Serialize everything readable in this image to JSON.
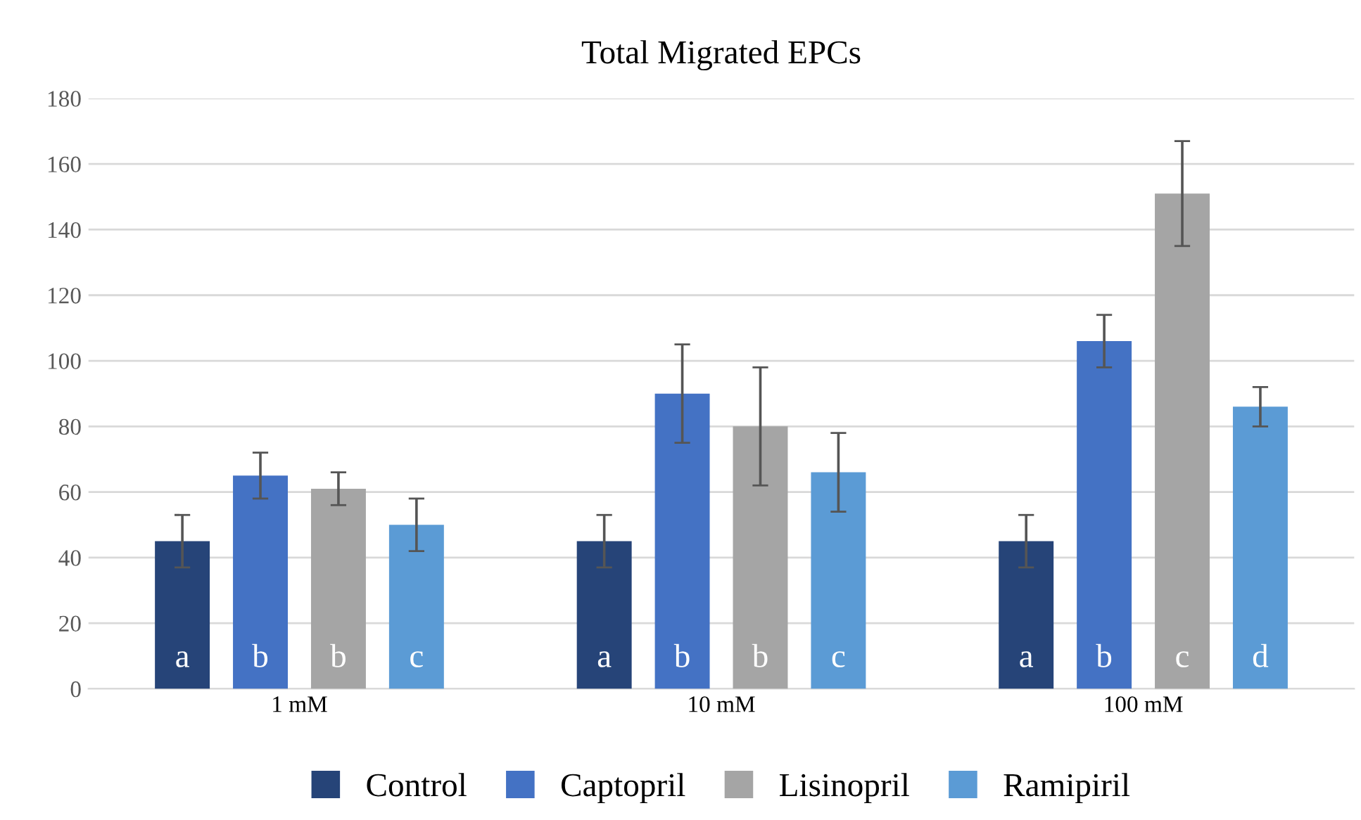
{
  "chart_data": {
    "type": "bar",
    "title": "Total Migrated EPCs",
    "categories": [
      "1 mM",
      "10 mM",
      "100 mM"
    ],
    "series": [
      {
        "name": "Control",
        "color": "#264478",
        "values": [
          45,
          45,
          45
        ],
        "errors": [
          8,
          8,
          8
        ],
        "value_labels": [
          "a",
          "a",
          "a"
        ]
      },
      {
        "name": "Captopril",
        "color": "#4472c4",
        "values": [
          65,
          90,
          106
        ],
        "errors": [
          7,
          15,
          8
        ],
        "value_labels": [
          "b",
          "b",
          "b"
        ]
      },
      {
        "name": "Lisinopril",
        "color": "#a5a5a5",
        "values": [
          61,
          80,
          151
        ],
        "errors": [
          5,
          18,
          16
        ],
        "value_labels": [
          "b",
          "b",
          "c"
        ]
      },
      {
        "name": "Ramipiril",
        "color": "#5b9bd5",
        "values": [
          50,
          66,
          86
        ],
        "errors": [
          8,
          12,
          6
        ],
        "value_labels": [
          "c",
          "c",
          "d"
        ]
      }
    ],
    "ylim": [
      0,
      180
    ],
    "yticks": [
      0,
      20,
      40,
      60,
      80,
      100,
      120,
      140,
      160,
      180
    ],
    "grid": "y",
    "legend": "bottom"
  }
}
